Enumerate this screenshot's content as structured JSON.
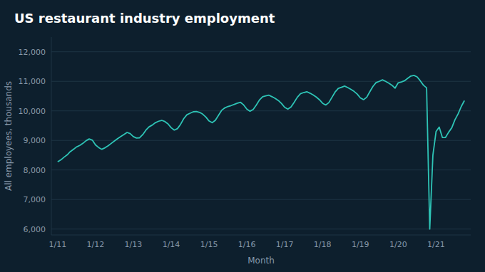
{
  "chart_data": {
    "type": "line",
    "title": "US restaurant industry employment",
    "xlabel": "Month",
    "ylabel": "All employees, thousands",
    "color": "#2ec4b6",
    "grid": true,
    "ylim": [
      5800,
      12500
    ],
    "yticks": [
      {
        "value": 6000,
        "label": "6,000"
      },
      {
        "value": 7000,
        "label": "7,000"
      },
      {
        "value": 8000,
        "label": "8,000"
      },
      {
        "value": 9000,
        "label": "9,000"
      },
      {
        "value": 10000,
        "label": "10,000"
      },
      {
        "value": 11000,
        "label": "11,000"
      },
      {
        "value": 12000,
        "label": "12,000"
      }
    ],
    "categories": [
      "1/11",
      null,
      null,
      null,
      null,
      null,
      null,
      null,
      null,
      null,
      null,
      null,
      "1/12",
      null,
      null,
      null,
      null,
      null,
      null,
      null,
      null,
      null,
      null,
      null,
      "1/13",
      null,
      null,
      null,
      null,
      null,
      null,
      null,
      null,
      null,
      null,
      null,
      "1/14",
      null,
      null,
      null,
      null,
      null,
      null,
      null,
      null,
      null,
      null,
      null,
      "1/15",
      null,
      null,
      null,
      null,
      null,
      null,
      null,
      null,
      null,
      null,
      null,
      "1/16",
      null,
      null,
      null,
      null,
      null,
      null,
      null,
      null,
      null,
      null,
      null,
      "1/17",
      null,
      null,
      null,
      null,
      null,
      null,
      null,
      null,
      null,
      null,
      null,
      "1/18",
      null,
      null,
      null,
      null,
      null,
      null,
      null,
      null,
      null,
      null,
      null,
      "1/19",
      null,
      null,
      null,
      null,
      null,
      null,
      null,
      null,
      null,
      null,
      null,
      "1/20",
      null,
      null,
      null,
      null,
      null,
      null,
      null,
      null,
      null,
      null,
      null,
      "1/21",
      null,
      null,
      null,
      null,
      null,
      null,
      null,
      null,
      null
    ],
    "values": [
      8274,
      8340,
      8430,
      8510,
      8620,
      8700,
      8780,
      8830,
      8900,
      8990,
      9050,
      9010,
      8850,
      8760,
      8700,
      8750,
      8820,
      8900,
      8980,
      9060,
      9130,
      9200,
      9270,
      9230,
      9130,
      9080,
      9090,
      9200,
      9350,
      9460,
      9520,
      9600,
      9650,
      9680,
      9640,
      9560,
      9430,
      9350,
      9400,
      9550,
      9740,
      9870,
      9920,
      9970,
      9980,
      9950,
      9890,
      9790,
      9660,
      9600,
      9680,
      9850,
      10020,
      10100,
      10150,
      10180,
      10220,
      10260,
      10290,
      10200,
      10060,
      9990,
      10050,
      10200,
      10370,
      10480,
      10510,
      10530,
      10480,
      10420,
      10350,
      10250,
      10120,
      10060,
      10130,
      10290,
      10460,
      10580,
      10620,
      10650,
      10600,
      10540,
      10470,
      10380,
      10260,
      10200,
      10280,
      10460,
      10640,
      10760,
      10800,
      10840,
      10790,
      10730,
      10660,
      10570,
      10440,
      10380,
      10460,
      10650,
      10830,
      10960,
      11000,
      11050,
      11000,
      10940,
      10870,
      10770,
      10950,
      10980,
      11020,
      11100,
      11180,
      11200,
      11150,
      11020,
      10870,
      10780,
      6000,
      8500,
      9300,
      9450,
      9100,
      9100,
      9280,
      9430,
      9700,
      9900,
      10150,
      10350
    ]
  }
}
